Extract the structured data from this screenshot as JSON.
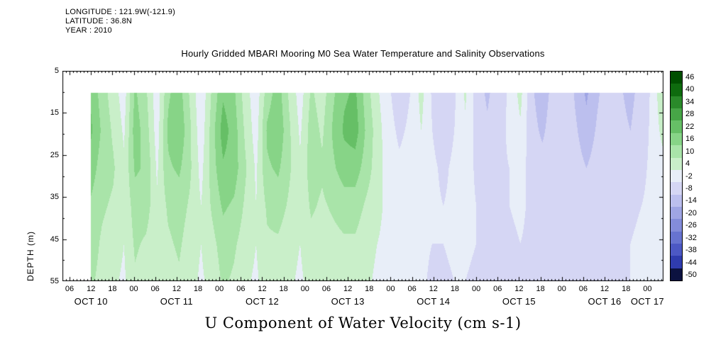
{
  "header": {
    "longitude": "LONGITUDE : 121.9W(-121.9)",
    "latitude": "LATITUDE : 36.8N",
    "year": "YEAR : 2010"
  },
  "title": "Hourly Gridded MBARI Mooring M0 Sea Water Temperature and Salinity Observations",
  "xlabel": "U Component of Water Velocity (cm s-1)",
  "chart_data": {
    "type": "heatmap",
    "title": "Hourly Gridded MBARI Mooring M0 Sea Water Temperature and Salinity Observations",
    "xlabel": "U Component of Water Velocity (cm s-1)",
    "value_unit": "cm s-1",
    "x_axis": {
      "unit": "hour of day, Oct 10 - Oct 17 2010",
      "axis_start_hour": 4,
      "axis_end_hour": 172.5,
      "hour_label_step": 6,
      "first_hour_label_value": 6,
      "hour_labels": [
        "06",
        "12",
        "18",
        "00",
        "06",
        "12",
        "18",
        "00",
        "06",
        "12",
        "18",
        "00",
        "06",
        "12",
        "18",
        "00",
        "06",
        "12",
        "18",
        "00",
        "06",
        "12",
        "18",
        "00",
        "06",
        "12",
        "18",
        "00"
      ],
      "date_labels": [
        "OCT 10",
        "OCT 11",
        "OCT 12",
        "OCT 13",
        "OCT 14",
        "OCT 15",
        "OCT 16",
        "OCT 17"
      ],
      "date_positions_hours": [
        12,
        36,
        60,
        84,
        108,
        132,
        156,
        168
      ]
    },
    "y_axis": {
      "label": "DEPTH (m)",
      "tick_labels": [
        "5",
        "15",
        "25",
        "35",
        "45",
        "55"
      ],
      "tick_depths": [
        5,
        15,
        25,
        35,
        45,
        55
      ],
      "range_m": [
        5,
        55
      ]
    },
    "colorbar": {
      "labels": [
        "46",
        "40",
        "34",
        "28",
        "22",
        "16",
        "10",
        "4",
        "-2",
        "-8",
        "-14",
        "-20",
        "-26",
        "-32",
        "-38",
        "-44",
        "-50"
      ],
      "level_step": 6,
      "colors": [
        "#004f00",
        "#0e6b0e",
        "#2a8a2a",
        "#47a647",
        "#66bf66",
        "#87d487",
        "#a9e4a9",
        "#c9efc9",
        "#e8eef8",
        "#d5d6f4",
        "#bcbfee",
        "#9fa5e4",
        "#838cda",
        "#6773d0",
        "#4c58c4",
        "#2f3cae",
        "#0c1240"
      ]
    },
    "grid": {
      "data_start_hour": 12,
      "data_top_depth_m": 10.2,
      "depths_m": [
        10,
        19,
        28,
        37,
        46,
        55
      ],
      "time_step_hours": 3,
      "n_time_columns": 53,
      "values": [
        [
          18,
          20,
          16,
          12,
          10,
          8
        ],
        [
          10,
          12,
          10,
          8,
          6,
          5
        ],
        [
          4,
          6,
          8,
          6,
          4,
          2
        ],
        [
          -2,
          0,
          2,
          2,
          1,
          0
        ],
        [
          14,
          16,
          14,
          10,
          8,
          6
        ],
        [
          8,
          10,
          12,
          10,
          6,
          4
        ],
        [
          -3,
          -2,
          0,
          2,
          2,
          1
        ],
        [
          12,
          14,
          12,
          8,
          6,
          4
        ],
        [
          16,
          18,
          14,
          10,
          8,
          6
        ],
        [
          6,
          8,
          8,
          6,
          4,
          3
        ],
        [
          -4,
          -3,
          -1,
          1,
          1,
          0
        ],
        [
          8,
          10,
          10,
          8,
          5,
          3
        ],
        [
          18,
          22,
          18,
          14,
          10,
          8
        ],
        [
          14,
          16,
          16,
          12,
          8,
          6
        ],
        [
          4,
          6,
          8,
          6,
          4,
          2
        ],
        [
          -3,
          -2,
          0,
          1,
          1,
          0
        ],
        [
          10,
          14,
          12,
          8,
          6,
          4
        ],
        [
          16,
          18,
          14,
          10,
          6,
          4
        ],
        [
          6,
          8,
          8,
          6,
          3,
          2
        ],
        [
          -2,
          0,
          2,
          2,
          1,
          0
        ],
        [
          8,
          10,
          10,
          8,
          5,
          3
        ],
        [
          4,
          6,
          8,
          6,
          4,
          2
        ],
        [
          12,
          14,
          12,
          8,
          5,
          3
        ],
        [
          18,
          20,
          16,
          10,
          6,
          4
        ],
        [
          20,
          22,
          16,
          10,
          6,
          4
        ],
        [
          10,
          12,
          10,
          6,
          3,
          2
        ],
        [
          2,
          4,
          4,
          3,
          1,
          0
        ],
        [
          -4,
          -3,
          -2,
          -1,
          -1,
          -2
        ],
        [
          -8,
          -6,
          -4,
          -3,
          -3,
          -4
        ],
        [
          -5,
          -4,
          -3,
          -3,
          -4,
          -5
        ],
        [
          3,
          1,
          -2,
          -3,
          -4,
          -4
        ],
        [
          -6,
          -5,
          -4,
          -4,
          -5,
          -6
        ],
        [
          -10,
          -8,
          -6,
          -5,
          -5,
          -6
        ],
        [
          -6,
          -5,
          -4,
          -4,
          -4,
          -5
        ],
        [
          2,
          0,
          -2,
          -3,
          -4,
          -5
        ],
        [
          -8,
          -7,
          -6,
          -5,
          -5,
          -6
        ],
        [
          -12,
          -10,
          -8,
          -6,
          -6,
          -7
        ],
        [
          -8,
          -7,
          -6,
          -5,
          -5,
          -6
        ],
        [
          -4,
          -4,
          -5,
          -5,
          -6,
          -7
        ],
        [
          3,
          0,
          -3,
          -4,
          -5,
          -6
        ],
        [
          -10,
          -9,
          -7,
          -6,
          -6,
          -7
        ],
        [
          -14,
          -12,
          -9,
          -7,
          -6,
          -7
        ],
        [
          -9,
          -8,
          -7,
          -6,
          -6,
          -6
        ],
        [
          -5,
          -5,
          -5,
          -5,
          -5,
          -6
        ],
        [
          -12,
          -10,
          -8,
          -7,
          -6,
          -6
        ],
        [
          -18,
          -15,
          -11,
          -8,
          -7,
          -7
        ],
        [
          -12,
          -10,
          -8,
          -7,
          -6,
          -6
        ],
        [
          -7,
          -6,
          -6,
          -5,
          -5,
          -5
        ],
        [
          -10,
          -9,
          -7,
          -6,
          -5,
          -5
        ],
        [
          -13,
          -11,
          -8,
          -6,
          -5,
          -5
        ],
        [
          -8,
          -7,
          -6,
          -5,
          -4,
          -4
        ],
        [
          -4,
          -4,
          -4,
          -4,
          -4,
          -4
        ],
        [
          8,
          4,
          -2,
          -3,
          -3,
          -3
        ]
      ]
    }
  }
}
